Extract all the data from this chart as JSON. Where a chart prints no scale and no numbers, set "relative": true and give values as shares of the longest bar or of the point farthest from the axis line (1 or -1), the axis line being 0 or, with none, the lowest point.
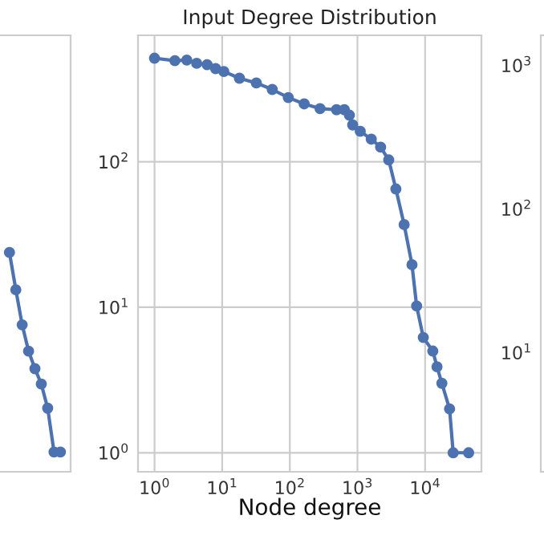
{
  "chart_data": [
    {
      "type": "line",
      "relative": true,
      "marker": "circle",
      "line_style": "solid",
      "categories": [
        null,
        null,
        null,
        null,
        null,
        null,
        null,
        null,
        null
      ],
      "series": [
        {
          "color": "#4c72b0",
          "values": [
            1,
            0.83,
            0.67,
            0.55,
            0.47,
            0.4,
            0.29,
            0.09,
            0.09
          ]
        }
      ]
    },
    {
      "type": "line",
      "title": "Input Degree Distribution",
      "xlabel": "Node degree",
      "xlim": [
        0.57,
        68000
      ],
      "ylim": [
        0.74,
        740
      ],
      "log": "xy",
      "grid": true,
      "marker": "circle",
      "line_style": "solid",
      "xticks": [
        {
          "value": 1,
          "label": "10$^{0}$"
        },
        {
          "value": 10,
          "label": "10$^{1}$"
        },
        {
          "value": 100,
          "label": "10$^{2}$"
        },
        {
          "value": 1000,
          "label": "10$^{3}$"
        },
        {
          "value": 10000,
          "label": "10$^{4}$"
        }
      ],
      "yticks": [
        {
          "value": 1,
          "label": "10$^{0}$"
        },
        {
          "value": 10,
          "label": "10$^{1}$"
        },
        {
          "value": 100,
          "label": "10$^{2}$"
        }
      ],
      "series": [
        {
          "color": "#4c72b0",
          "x": [
            1,
            2,
            3,
            4.2,
            6,
            8,
            10.6,
            18,
            32,
            55,
            95,
            163,
            280,
            490,
            640,
            760,
            850,
            1100,
            1600,
            2200,
            2900,
            3700,
            4900,
            6400,
            7500,
            9400,
            13000,
            15000,
            17700,
            23000,
            26000,
            44000
          ],
          "values": [
            515,
            495,
            500,
            475,
            465,
            437,
            417,
            375,
            348,
            314,
            276,
            250,
            232,
            228,
            228,
            209,
            179,
            162,
            143,
            126,
            103,
            65,
            37,
            19.6,
            10.2,
            6.2,
            5,
            3.9,
            3,
            2,
            1,
            1
          ]
        }
      ]
    },
    {
      "type": "other",
      "annotations": [
        "10$^{3}$",
        "10$^{2}$",
        "10$^{1}$"
      ]
    }
  ]
}
